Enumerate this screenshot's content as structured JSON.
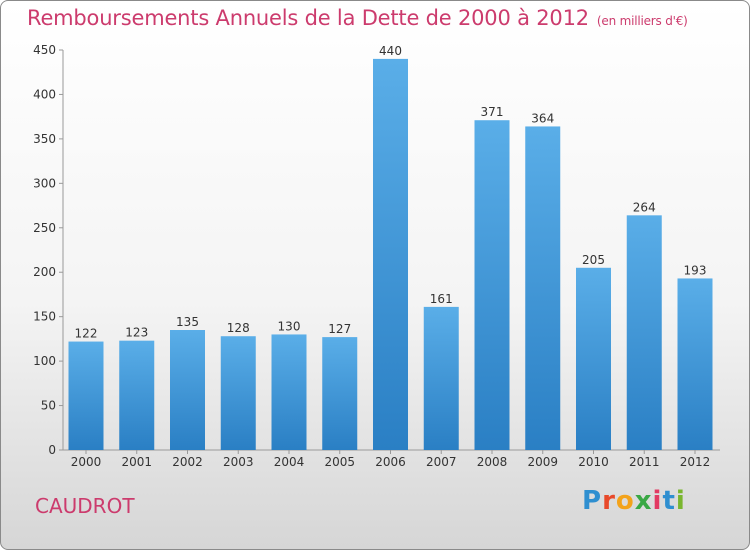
{
  "chart_data": {
    "type": "bar",
    "title": "Remboursements Annuels de la Dette de 2000 à 2012",
    "subtitle": "(en milliers d'€)",
    "categories": [
      "2000",
      "2001",
      "2002",
      "2003",
      "2004",
      "2005",
      "2006",
      "2007",
      "2008",
      "2009",
      "2010",
      "2011",
      "2012"
    ],
    "values": [
      122,
      123,
      135,
      128,
      130,
      127,
      440,
      161,
      371,
      364,
      205,
      264,
      193
    ],
    "xlabel": "",
    "ylabel": "",
    "ylim": [
      0,
      450
    ],
    "yticks": [
      0,
      50,
      100,
      150,
      200,
      250,
      300,
      350,
      400,
      450
    ],
    "data_labels": true,
    "grid": false,
    "colors": {
      "bar_top": "#5aaee8",
      "bar_bottom": "#2a7fc4",
      "title": "#cc3b6d"
    }
  },
  "commune": "CAUDROT",
  "logo": {
    "text": "Proxiti",
    "letters": [
      "P",
      "r",
      "o",
      "x",
      "i",
      "t",
      "i"
    ]
  }
}
